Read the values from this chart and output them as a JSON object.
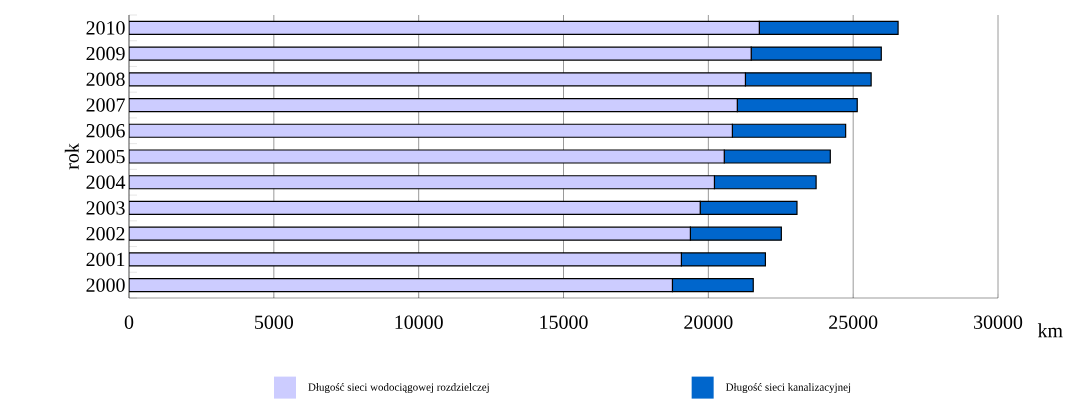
{
  "chart_data": {
    "type": "bar",
    "orientation": "horizontal",
    "stacked": true,
    "ylabel": "rok",
    "xlabel": "km",
    "categories": [
      "2010",
      "2009",
      "2008",
      "2007",
      "2006",
      "2005",
      "2004",
      "2003",
      "2002",
      "2001",
      "2000"
    ],
    "series": [
      {
        "name": "Długość sieci wodociągowej rozdzielczej",
        "color": "#ccccff",
        "values": [
          21760,
          21480,
          21280,
          21000,
          20830,
          20550,
          20210,
          19720,
          19380,
          19070,
          18760
        ]
      },
      {
        "name": "Długość sieci kanalizacyjnej",
        "color": "#0066cc",
        "values": [
          4790,
          4490,
          4340,
          4140,
          3910,
          3660,
          3510,
          3340,
          3140,
          2900,
          2790
        ]
      }
    ],
    "xlim": [
      0,
      30000
    ],
    "xticks": [
      0,
      5000,
      10000,
      15000,
      20000,
      25000,
      30000
    ],
    "grid": "x",
    "legend": "bottom"
  }
}
